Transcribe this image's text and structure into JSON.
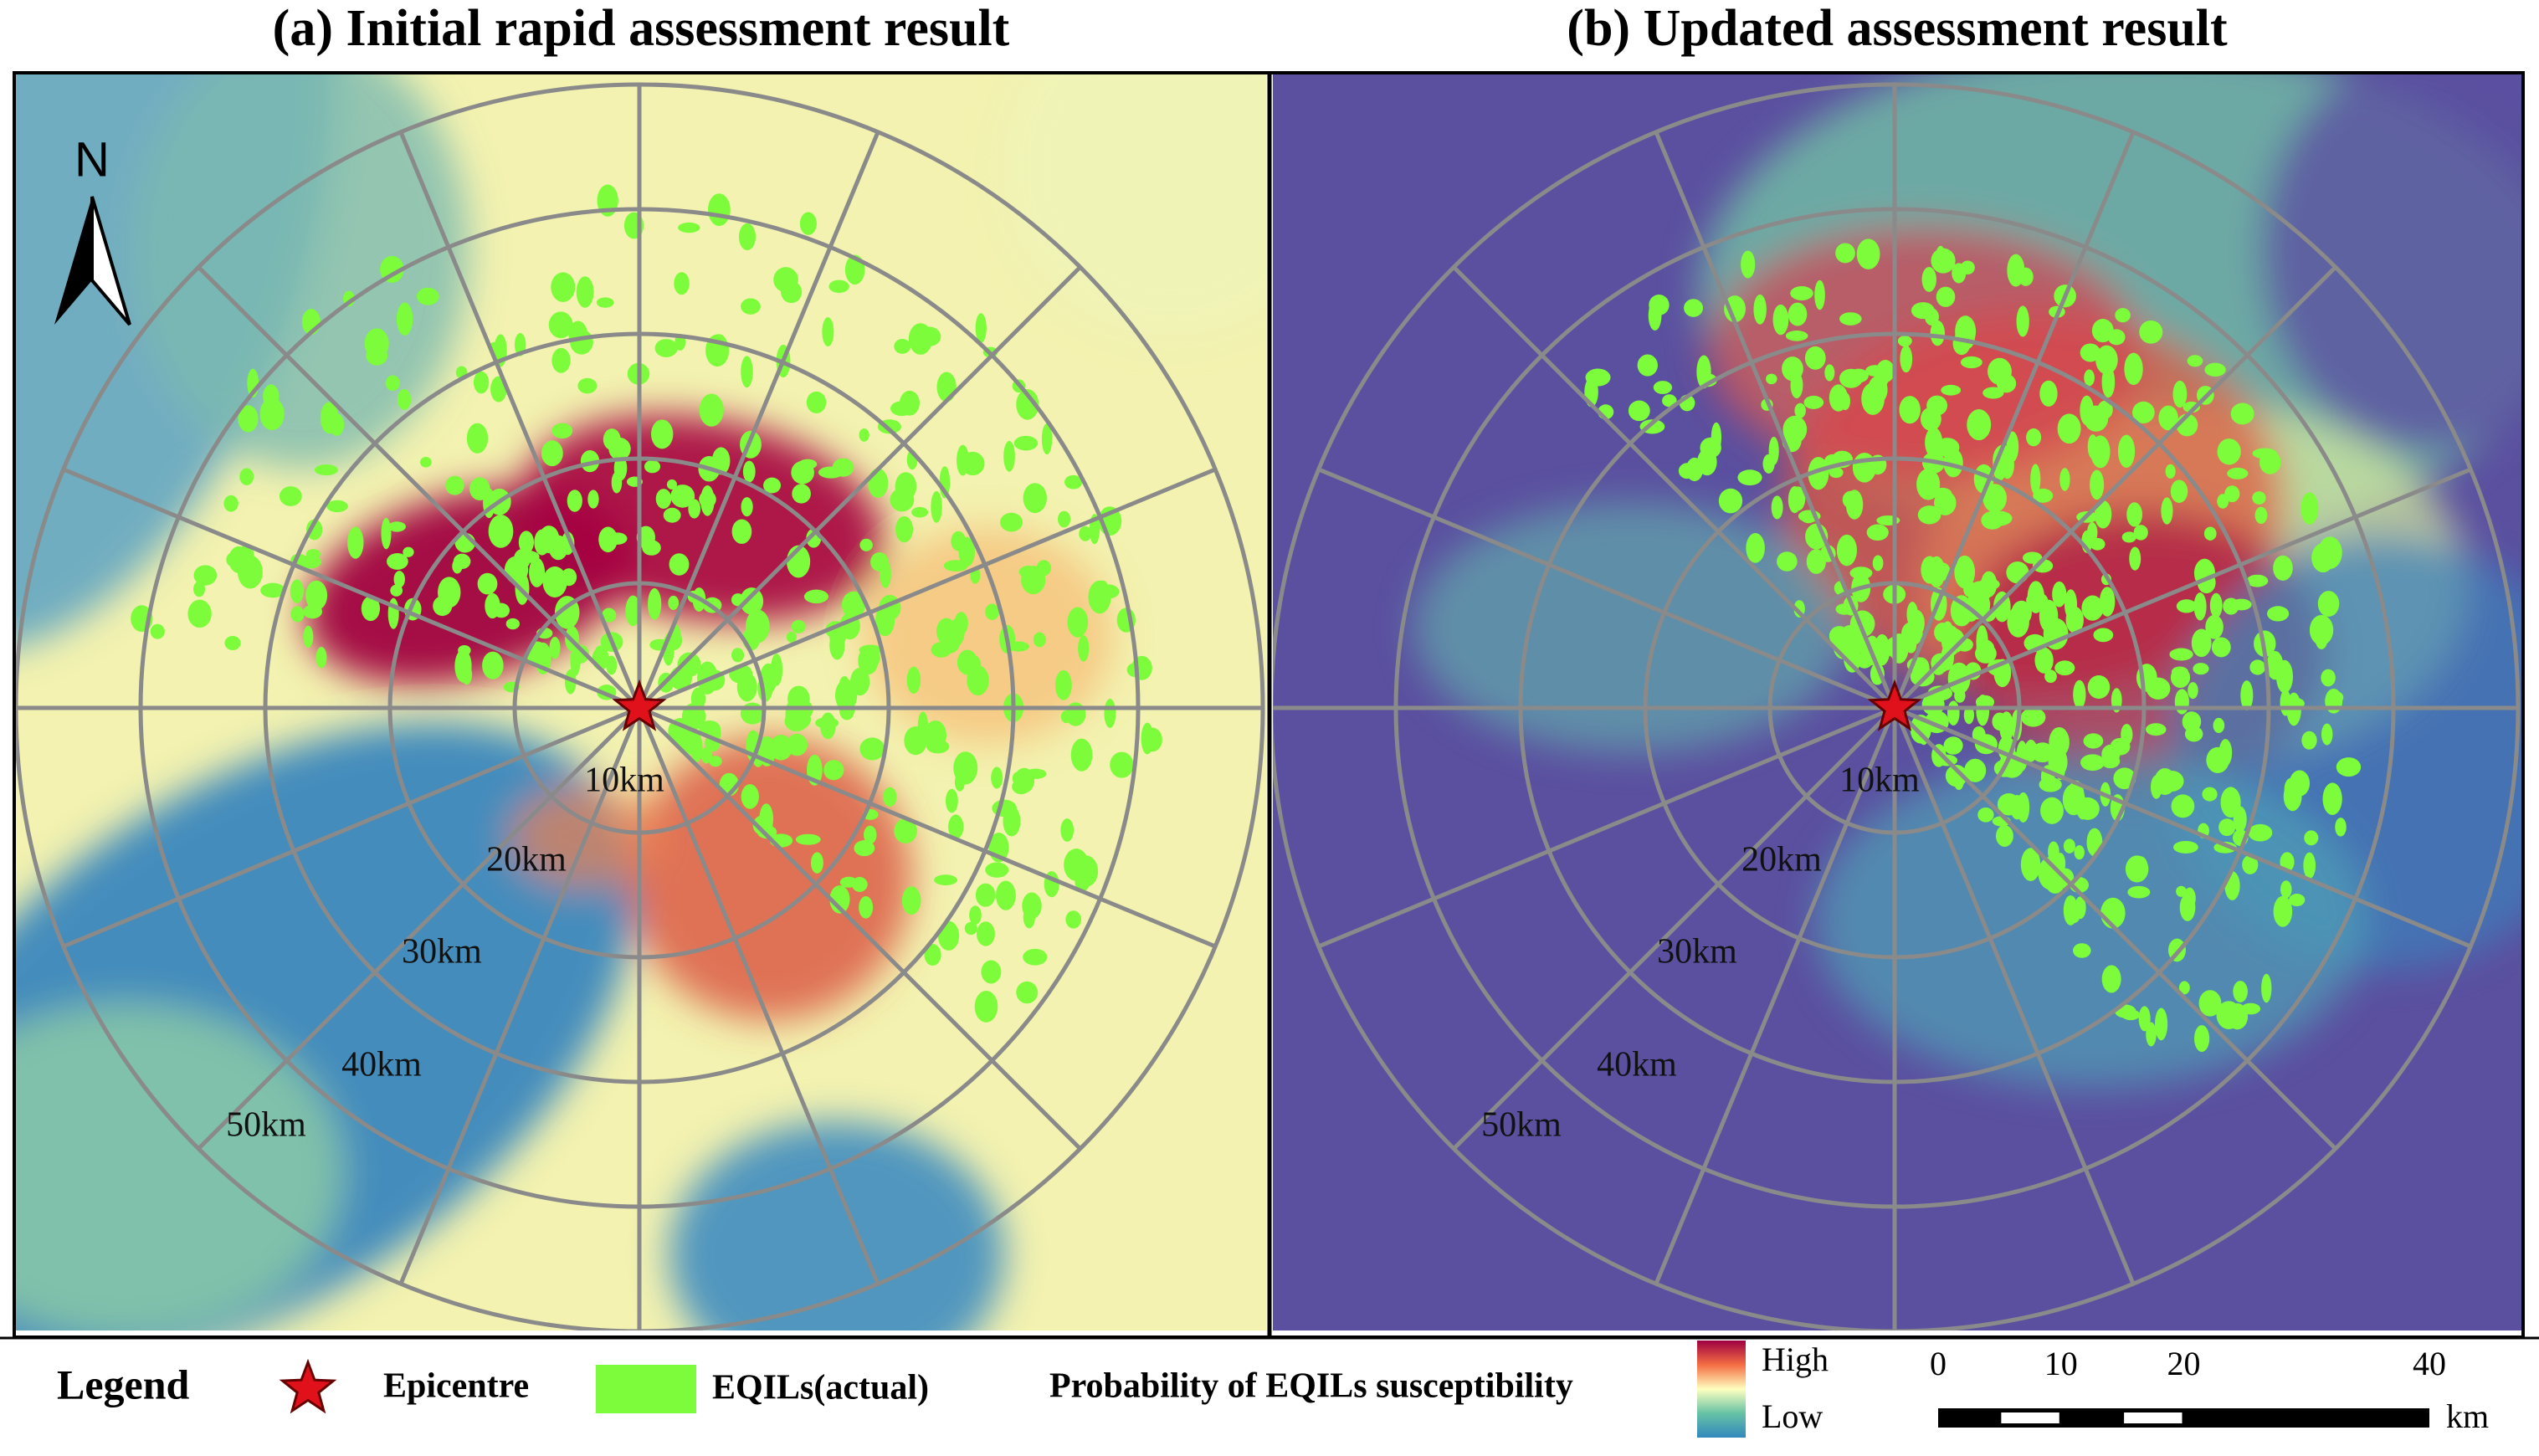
{
  "panels": [
    {
      "title": "(a) Initial rapid assessment result",
      "north": "N",
      "ring_labels": [
        "10km",
        "20km",
        "30km",
        "40km",
        "50km"
      ]
    },
    {
      "title": "(b) Updated assessment result",
      "ring_labels": [
        "10km",
        "20km",
        "30km",
        "40km",
        "50km"
      ]
    }
  ],
  "legend": {
    "title": "Legend",
    "epicentre": "Epicentre",
    "eqils": "EQILs(actual)",
    "probability": "Probability of EQILs susceptibility",
    "high": "High",
    "low": "Low"
  },
  "scale_bar": {
    "ticks": [
      0,
      10,
      20,
      40
    ],
    "unit": "km"
  }
}
